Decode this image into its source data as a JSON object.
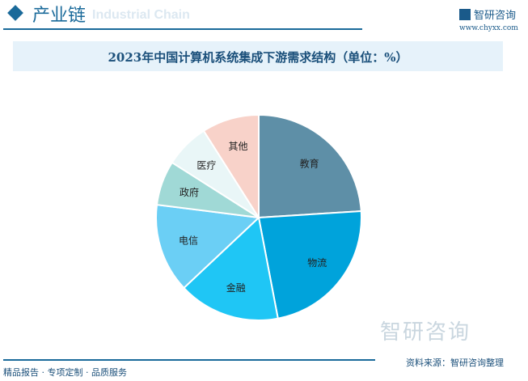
{
  "header": {
    "section_title": "产业链",
    "section_subtitle": "Industrial Chain",
    "brand": "智研咨询",
    "url": "www.chyxx.com"
  },
  "footer": {
    "tagline": "精品报告 · 专项定制 · 品质服务",
    "source": "资料来源：智研咨询整理",
    "watermark": "智研咨询"
  },
  "chart_data": {
    "type": "pie",
    "title": "2023年中国计算机系统集成下游需求结构（单位：%）",
    "categories": [
      "教育",
      "物流",
      "金融",
      "电信",
      "政府",
      "医疗",
      "其他"
    ],
    "values": [
      24,
      23,
      16,
      14,
      7,
      7,
      9
    ],
    "colors": [
      "#5e8fa7",
      "#00a3db",
      "#1fc6f5",
      "#6bcff5",
      "#a0d9d6",
      "#e9f6f7",
      "#f8d2c9"
    ],
    "start": "12 o'clock",
    "direction": "clockwise",
    "legend": "none"
  }
}
